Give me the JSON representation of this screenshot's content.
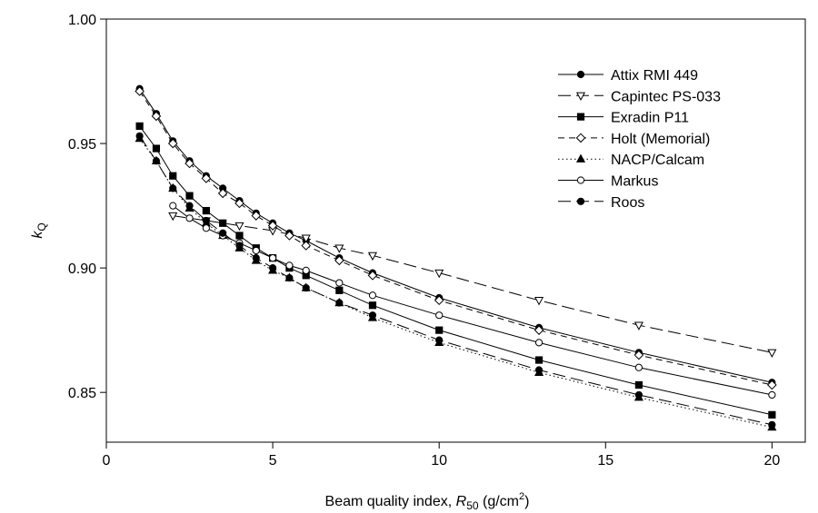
{
  "chart_data": {
    "type": "line",
    "title": "",
    "xlabel": "Beam quality index,",
    "xlabel_symbol": "R",
    "xlabel_sub": "50",
    "xlabel_unit_pre": "(g/cm",
    "xlabel_unit_sup": "2",
    "xlabel_unit_post": ")",
    "ylabel_symbol": "k",
    "ylabel_sub": "Q",
    "xlim": [
      0,
      21
    ],
    "ylim": [
      0.83,
      1.0
    ],
    "xticks": [
      0,
      5,
      10,
      15,
      20
    ],
    "xtick_labels": [
      "0",
      "5",
      "10",
      "15",
      "20"
    ],
    "yticks": [
      0.85,
      0.9,
      0.95,
      1.0
    ],
    "ytick_labels": [
      "0.85",
      "0.90",
      "0.95",
      "1.00"
    ],
    "grid": false,
    "legend_position": "top-right",
    "series": [
      {
        "name": "Attix RMI 449",
        "marker": "circle-filled",
        "dash": "solid",
        "x": [
          1,
          1.5,
          2,
          2.5,
          3,
          3.5,
          4,
          4.5,
          5,
          5.5,
          6,
          7,
          8,
          10,
          13,
          16,
          20
        ],
        "y": [
          0.972,
          0.962,
          0.951,
          0.943,
          0.937,
          0.932,
          0.927,
          0.922,
          0.918,
          0.914,
          0.911,
          0.904,
          0.898,
          0.888,
          0.876,
          0.866,
          0.854
        ]
      },
      {
        "name": "Capintec PS-033",
        "marker": "triangle-down-open",
        "dash": "long-dash",
        "x": [
          2,
          3,
          4,
          5,
          6,
          7,
          8,
          10,
          13,
          16,
          20
        ],
        "y": [
          0.921,
          0.919,
          0.917,
          0.915,
          0.912,
          0.908,
          0.905,
          0.898,
          0.887,
          0.877,
          0.866
        ]
      },
      {
        "name": "Exradin P11",
        "marker": "square-filled",
        "dash": "solid",
        "x": [
          1,
          1.5,
          2,
          2.5,
          3,
          3.5,
          4,
          4.5,
          5,
          5.5,
          6,
          7,
          8,
          10,
          13,
          16,
          20
        ],
        "y": [
          0.957,
          0.948,
          0.937,
          0.929,
          0.923,
          0.918,
          0.913,
          0.908,
          0.904,
          0.9,
          0.897,
          0.891,
          0.885,
          0.875,
          0.863,
          0.853,
          0.841
        ]
      },
      {
        "name": "Holt (Memorial)",
        "marker": "diamond-open",
        "dash": "short-dash",
        "x": [
          1,
          1.5,
          2,
          2.5,
          3,
          3.5,
          4,
          4.5,
          5,
          5.5,
          6,
          7,
          8,
          10,
          13,
          16,
          20
        ],
        "y": [
          0.971,
          0.961,
          0.95,
          0.942,
          0.936,
          0.93,
          0.926,
          0.921,
          0.917,
          0.913,
          0.909,
          0.903,
          0.897,
          0.887,
          0.875,
          0.865,
          0.853
        ]
      },
      {
        "name": "NACP/Calcam",
        "marker": "triangle-up-filled",
        "dash": "dotted",
        "x": [
          1,
          1.5,
          2,
          2.5,
          3,
          3.5,
          4,
          4.5,
          5,
          5.5,
          6,
          7,
          8,
          10,
          13,
          16,
          20
        ],
        "y": [
          0.952,
          0.943,
          0.932,
          0.924,
          0.918,
          0.913,
          0.908,
          0.903,
          0.899,
          0.896,
          0.892,
          0.886,
          0.88,
          0.87,
          0.858,
          0.848,
          0.836
        ]
      },
      {
        "name": "Markus",
        "marker": "circle-open",
        "dash": "solid",
        "x": [
          2,
          2.5,
          3,
          3.5,
          4,
          4.5,
          5,
          5.5,
          6,
          7,
          8,
          10,
          13,
          16,
          20
        ],
        "y": [
          0.925,
          0.92,
          0.916,
          0.913,
          0.91,
          0.907,
          0.904,
          0.901,
          0.899,
          0.894,
          0.889,
          0.881,
          0.87,
          0.86,
          0.849
        ]
      },
      {
        "name": "Roos",
        "marker": "circle-filled",
        "dash": "long-dash",
        "x": [
          1,
          1.5,
          2,
          2.5,
          3,
          3.5,
          4,
          4.5,
          5,
          5.5,
          6,
          7,
          8,
          10,
          13,
          16,
          20
        ],
        "y": [
          0.953,
          0.943,
          0.932,
          0.925,
          0.919,
          0.914,
          0.909,
          0.904,
          0.9,
          0.896,
          0.892,
          0.886,
          0.881,
          0.871,
          0.859,
          0.849,
          0.837
        ]
      }
    ]
  }
}
